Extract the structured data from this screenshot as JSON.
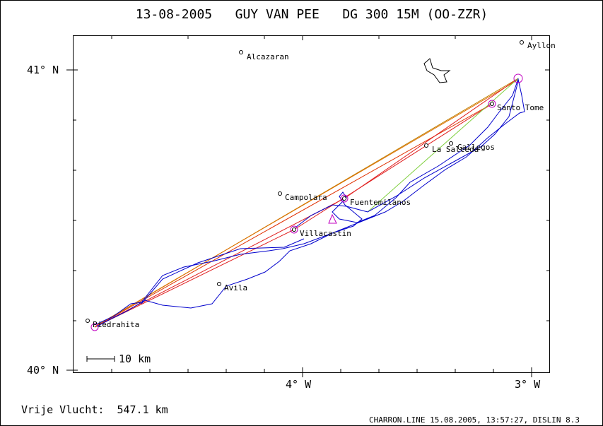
{
  "header": {
    "title": "13-08-2005   GUY VAN PEE   DG 300 15M (OO-ZZR)"
  },
  "axes": {
    "lat_labels": [
      "41° N",
      "40° N"
    ],
    "lon_labels": [
      "4° W",
      "3° W"
    ]
  },
  "places": [
    "Alcazaran",
    "Ayllon",
    "Santo Tome",
    "La Salceda",
    "Gallegos",
    "Campolara",
    "Fuentemilanos",
    "Villacastin",
    "Avila",
    "Piedrahita"
  ],
  "scale_bar": "10 km",
  "footer": {
    "distance": "Vrije Vlucht:  547.1 km",
    "credits": "CHARRON.LINE 15.08.2005, 13:57:27, DISLIN 8.3"
  }
}
